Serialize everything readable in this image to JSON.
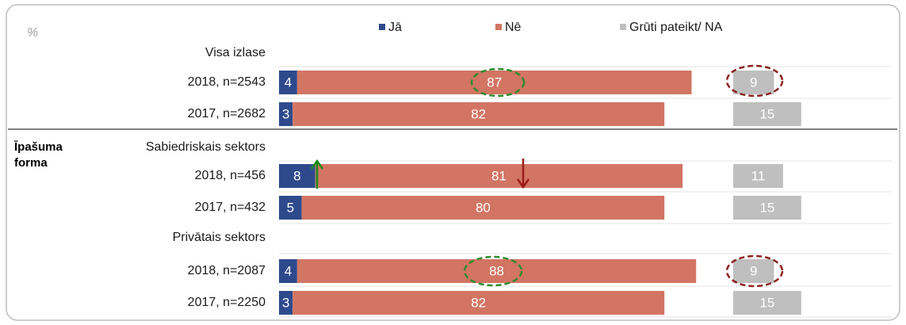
{
  "chart_data": {
    "type": "stacked_bar_horizontal",
    "unit_label": "%",
    "group_label": "Īpašuma forma",
    "categories": [
      "Visa izlase",
      "2018, n=2543",
      "2017, n=2682",
      "Sabiedriskais sektors",
      "2018, n=456",
      "2017, n=432",
      "Privātais sektors",
      "2018, n=2087",
      "2017, n=2250"
    ],
    "series": [
      {
        "name": "Jā",
        "color": "#2e4a8c",
        "values": [
          null,
          4,
          3,
          null,
          8,
          5,
          null,
          4,
          3
        ]
      },
      {
        "name": "Nē",
        "color": "#d27563",
        "values": [
          null,
          87,
          82,
          null,
          81,
          80,
          null,
          88,
          82
        ]
      },
      {
        "name": "Grūti pateikt/ NA",
        "color": "#bfbfbf",
        "values": [
          null,
          9,
          15,
          null,
          11,
          15,
          null,
          9,
          15
        ]
      }
    ],
    "legend": "top"
  }
}
